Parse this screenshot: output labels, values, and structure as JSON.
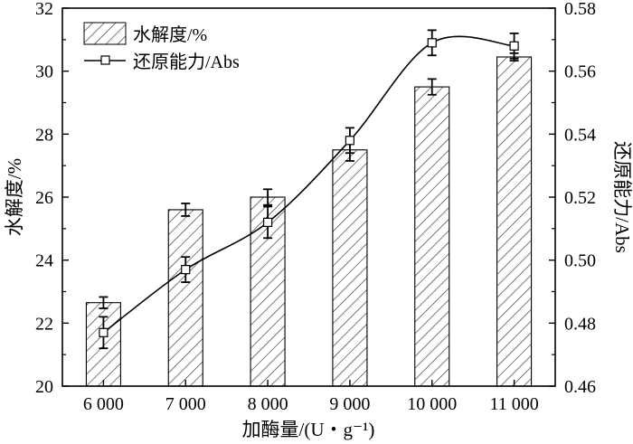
{
  "chart_data": {
    "type": "bar",
    "categories": [
      "6 000",
      "7 000",
      "8 000",
      "9 000",
      "10 000",
      "11 000"
    ],
    "series": [
      {
        "name": "水解度/%",
        "kind": "bar",
        "axis": "left",
        "values": [
          22.65,
          25.6,
          26.0,
          27.5,
          29.5,
          30.45
        ],
        "errors": [
          0.18,
          0.2,
          0.25,
          0.35,
          0.25,
          0.12
        ]
      },
      {
        "name": "还原能力/Abs",
        "kind": "line",
        "axis": "right",
        "values": [
          0.477,
          0.497,
          0.512,
          0.538,
          0.569,
          0.568
        ],
        "errors": [
          0.005,
          0.004,
          0.005,
          0.004,
          0.004,
          0.004
        ]
      }
    ],
    "xlabel": "加酶量/(U・g⁻¹)",
    "ylabel": "水解度/%",
    "y2label": "还原能力/Abs",
    "ylim": [
      20,
      32
    ],
    "y2lim": [
      0.46,
      0.58
    ],
    "yticks": [
      "20",
      "22",
      "24",
      "26",
      "28",
      "30",
      "32"
    ],
    "y2ticks": [
      "0.46",
      "0.48",
      "0.50",
      "0.52",
      "0.54",
      "0.56",
      "0.58"
    ],
    "legend": {
      "position": "top-left",
      "entries": [
        "水解度/%",
        "还原能力/Abs"
      ]
    },
    "grid": false,
    "colors": {
      "axis": "#000000",
      "bar_fill": "#ffffff",
      "bar_hatch": "#333333",
      "line": "#000000"
    }
  }
}
